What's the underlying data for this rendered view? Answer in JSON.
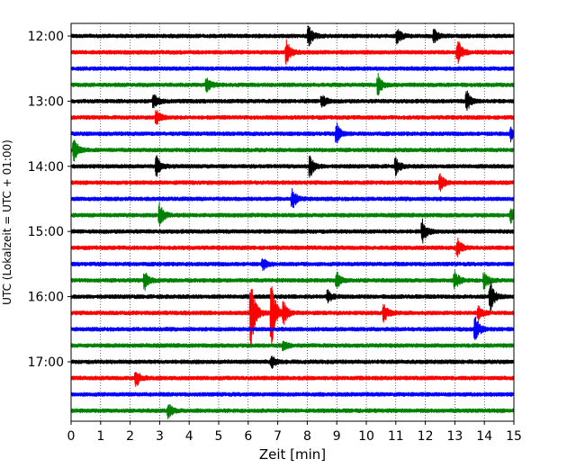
{
  "chart_data": {
    "type": "line",
    "title": "",
    "xlabel": "Zeit  [min]",
    "ylabel": "UTC (Lokalzeit = UTC + 01:00)",
    "xlim": [
      0,
      15
    ],
    "x_ticks": [
      "0",
      "1",
      "2",
      "3",
      "4",
      "5",
      "6",
      "7",
      "8",
      "9",
      "10",
      "11",
      "12",
      "13",
      "14",
      "15"
    ],
    "y_ticks": [
      "12:00",
      "13:00",
      "14:00",
      "15:00",
      "16:00",
      "17:00"
    ],
    "grid": "vertical dotted",
    "trace_interval_minutes": 15,
    "colors": [
      "#000000",
      "#ff0000",
      "#0000ff",
      "#008000"
    ],
    "series": [
      {
        "start": "12:00",
        "color": "#000000",
        "events": [
          [
            8.05,
            12
          ],
          [
            11.05,
            9
          ],
          [
            12.3,
            7
          ]
        ]
      },
      {
        "start": "12:15",
        "color": "#ff0000",
        "events": [
          [
            7.3,
            13
          ],
          [
            13.1,
            14
          ]
        ]
      },
      {
        "start": "12:30",
        "color": "#0000ff",
        "events": []
      },
      {
        "start": "12:45",
        "color": "#008000",
        "events": [
          [
            4.6,
            7
          ],
          [
            10.4,
            11
          ]
        ]
      },
      {
        "start": "13:00",
        "color": "#000000",
        "events": [
          [
            2.8,
            8
          ],
          [
            8.5,
            8
          ],
          [
            13.4,
            12
          ]
        ]
      },
      {
        "start": "13:15",
        "color": "#ff0000",
        "events": [
          [
            2.9,
            8
          ]
        ]
      },
      {
        "start": "13:30",
        "color": "#0000ff",
        "events": [
          [
            9.0,
            11
          ],
          [
            14.9,
            9
          ]
        ]
      },
      {
        "start": "13:45",
        "color": "#008000",
        "events": [
          [
            0.1,
            13
          ]
        ]
      },
      {
        "start": "14:00",
        "color": "#000000",
        "events": [
          [
            2.9,
            11
          ],
          [
            8.1,
            12
          ],
          [
            11.0,
            9
          ]
        ]
      },
      {
        "start": "14:15",
        "color": "#ff0000",
        "events": [
          [
            12.5,
            9
          ]
        ]
      },
      {
        "start": "14:30",
        "color": "#0000ff",
        "events": [
          [
            7.5,
            11
          ]
        ]
      },
      {
        "start": "14:45",
        "color": "#008000",
        "events": [
          [
            3.0,
            13
          ],
          [
            14.9,
            8
          ]
        ]
      },
      {
        "start": "15:00",
        "color": "#000000",
        "events": [
          [
            11.9,
            13
          ]
        ]
      },
      {
        "start": "15:15",
        "color": "#ff0000",
        "events": [
          [
            13.1,
            9
          ]
        ]
      },
      {
        "start": "15:30",
        "color": "#0000ff",
        "events": [
          [
            6.5,
            6
          ]
        ]
      },
      {
        "start": "15:45",
        "color": "#008000",
        "events": [
          [
            2.5,
            10
          ],
          [
            9.0,
            9
          ],
          [
            13.0,
            11
          ],
          [
            14.0,
            10
          ]
        ]
      },
      {
        "start": "16:00",
        "color": "#000000",
        "events": [
          [
            8.7,
            7
          ],
          [
            14.2,
            17
          ]
        ]
      },
      {
        "start": "16:15",
        "color": "#ff0000",
        "events": [
          [
            6.1,
            40
          ],
          [
            6.8,
            36
          ],
          [
            7.2,
            12
          ],
          [
            10.6,
            10
          ],
          [
            13.8,
            9
          ]
        ]
      },
      {
        "start": "16:30",
        "color": "#0000ff",
        "events": [
          [
            13.7,
            14
          ]
        ]
      },
      {
        "start": "16:45",
        "color": "#008000",
        "events": [
          [
            7.2,
            5
          ]
        ]
      },
      {
        "start": "17:00",
        "color": "#000000",
        "events": [
          [
            6.8,
            6
          ]
        ]
      },
      {
        "start": "17:15",
        "color": "#ff0000",
        "events": [
          [
            2.2,
            10
          ]
        ]
      },
      {
        "start": "17:30",
        "color": "#0000ff",
        "events": []
      },
      {
        "start": "17:45",
        "color": "#008000",
        "events": [
          [
            3.3,
            8
          ]
        ]
      }
    ]
  }
}
